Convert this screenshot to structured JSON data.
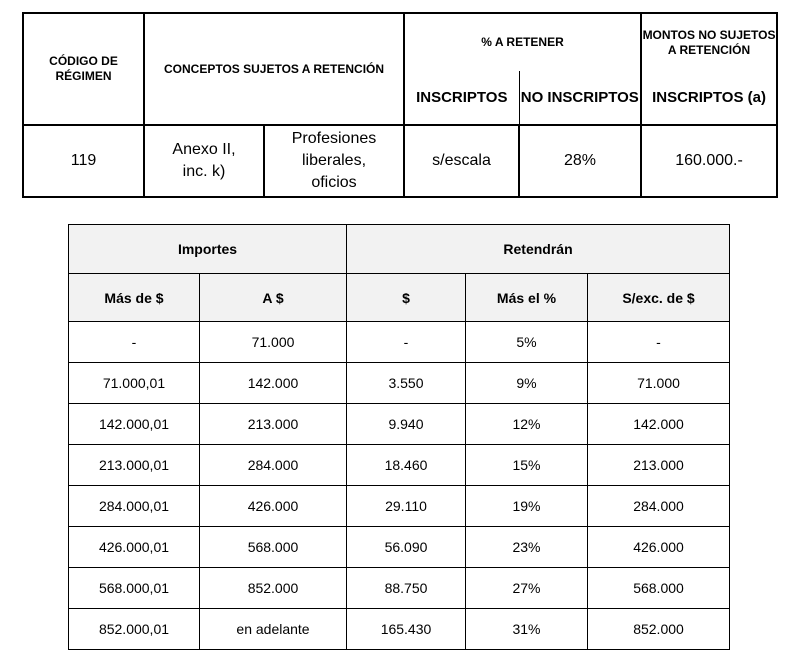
{
  "regime_table": {
    "headers": {
      "code": "CÓDIGO DE RÉGIMEN",
      "concepts": "CONCEPTOS SUJETOS A RETENCIÓN",
      "percent": "% A RETENER",
      "inscriptos": "INSCRIPTOS",
      "no_inscriptos": "NO INSCRIPTOS",
      "montos": "MONTOS NO SUJETOS A RETENCIÓN",
      "montos_inscriptos": "INSCRIPTOS (a)"
    },
    "row": {
      "code": "119",
      "anexo": "Anexo II, inc. k)",
      "concept": "Profesiones liberales, oficios",
      "inscriptos": "s/escala",
      "no_inscriptos": "28%",
      "monto": "160.000.-"
    }
  },
  "scale_table": {
    "group_headers": [
      "Importes",
      "Retendrán"
    ],
    "columns": [
      "Más de $",
      "A $",
      "$",
      "Más el %",
      "S/exc. de $"
    ],
    "rows": [
      [
        "-",
        "71.000",
        "-",
        "5%",
        "-"
      ],
      [
        "71.000,01",
        "142.000",
        "3.550",
        "9%",
        "71.000"
      ],
      [
        "142.000,01",
        "213.000",
        "9.940",
        "12%",
        "142.000"
      ],
      [
        "213.000,01",
        "284.000",
        "18.460",
        "15%",
        "213.000"
      ],
      [
        "284.000,01",
        "426.000",
        "29.110",
        "19%",
        "284.000"
      ],
      [
        "426.000,01",
        "568.000",
        "56.090",
        "23%",
        "426.000"
      ],
      [
        "568.000,01",
        "852.000",
        "88.750",
        "27%",
        "568.000"
      ],
      [
        "852.000,01",
        "en adelante",
        "165.430",
        "31%",
        "852.000"
      ]
    ]
  },
  "colors": {
    "header_bg": "#f2f2f2",
    "border": "#000000"
  }
}
